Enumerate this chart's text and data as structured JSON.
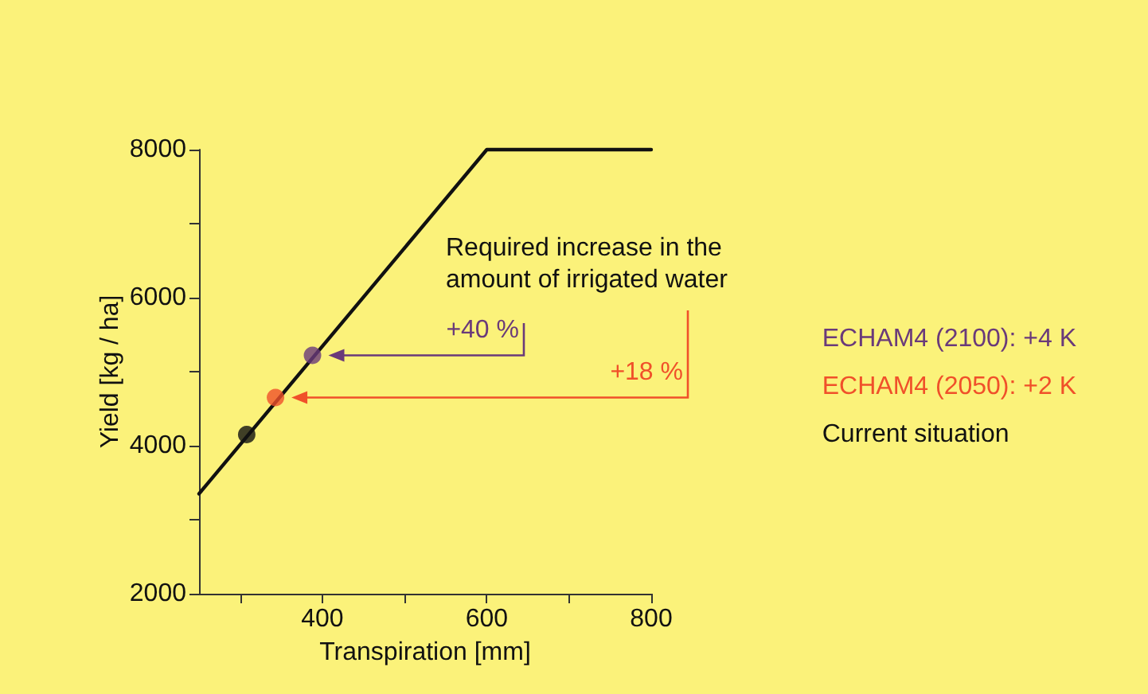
{
  "chart_data": {
    "type": "line",
    "xlabel": "Transpiration [mm]",
    "ylabel": "Yield [kg / ha]",
    "xlim": [
      250,
      800
    ],
    "ylim": [
      2000,
      8000
    ],
    "xticks": [
      {
        "value": 300,
        "label": null
      },
      400,
      {
        "value": 500,
        "label": null
      },
      600,
      {
        "value": 700,
        "label": null
      },
      800
    ],
    "yticks": [
      2000,
      {
        "value": 3000,
        "label": null
      },
      4000,
      {
        "value": 5000,
        "label": null
      },
      6000,
      {
        "value": 7000,
        "label": null
      },
      8000
    ],
    "series": [
      {
        "color": "#111111",
        "x": [
          250,
          600,
          800
        ],
        "values": [
          3350,
          8000,
          8000
        ],
        "marker": "none"
      },
      {
        "type": "scatter",
        "name": "ECHAM4 (2100): +4 K",
        "color": "#6a3a7a",
        "x": [
          388
        ],
        "values": [
          5220
        ],
        "marker": "circle"
      },
      {
        "type": "scatter",
        "name": "ECHAM4 (2050): +2 K",
        "color": "#f0502a",
        "x": [
          343
        ],
        "values": [
          4650
        ],
        "marker": "circle"
      },
      {
        "type": "scatter",
        "name": "Current situation",
        "color": "#111111",
        "x": [
          308
        ],
        "values": [
          4150
        ],
        "marker": "circle"
      }
    ],
    "annotations": [
      "Required increase in the amount of irrigated water",
      "+40 %",
      "+18 %"
    ],
    "legend": "right",
    "grid": false
  }
}
